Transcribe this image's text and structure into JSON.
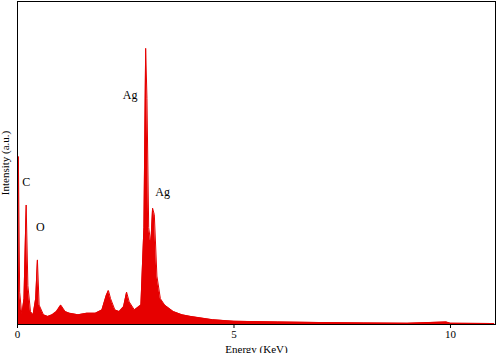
{
  "chart_data": {
    "type": "area",
    "x_label": "Energy (KeV)",
    "y_label": "Intensity (a.u.)",
    "xlim": [
      0,
      11.04
    ],
    "xticks": [
      0,
      5,
      10
    ],
    "ylim": [
      0,
      100
    ],
    "yticks": [],
    "tick_labels": "x",
    "color": "#e60000",
    "x": [
      0,
      0.02,
      0.05,
      0.1,
      0.15,
      0.2,
      0.24,
      0.3,
      0.36,
      0.42,
      0.46,
      0.5,
      0.6,
      0.7,
      0.8,
      0.9,
      1.0,
      1.1,
      1.2,
      1.4,
      1.6,
      1.8,
      1.95,
      2.05,
      2.1,
      2.15,
      2.25,
      2.35,
      2.45,
      2.52,
      2.58,
      2.7,
      2.85,
      2.92,
      2.96,
      2.99,
      3.03,
      3.08,
      3.12,
      3.16,
      3.22,
      3.3,
      3.4,
      3.6,
      3.8,
      4.0,
      4.5,
      5.0,
      6.0,
      7.0,
      8.0,
      9.0,
      9.9,
      10.0,
      11.0
    ],
    "values": [
      0,
      52,
      10,
      3,
      8,
      37,
      12,
      4,
      3,
      8,
      20,
      6,
      3,
      2.5,
      3,
      4,
      6,
      4,
      3.5,
      3,
      3.5,
      3.5,
      4.5,
      9,
      10.5,
      8,
      4.5,
      4,
      5.5,
      10,
      7,
      4.5,
      6,
      30,
      85.5,
      70,
      30,
      25,
      36,
      34,
      15,
      8,
      6,
      4,
      3,
      2.5,
      1.5,
      1.0,
      0.8,
      0.6,
      0.5,
      0.4,
      0.8,
      0.4,
      0.3
    ],
    "annotations": [
      {
        "text": "C",
        "x": 0.2,
        "y": 44
      },
      {
        "text": "O",
        "x": 0.53,
        "y": 30
      },
      {
        "text": "Ag",
        "x": 2.6,
        "y": 71
      },
      {
        "text": "Ag",
        "x": 3.35,
        "y": 41
      }
    ]
  }
}
